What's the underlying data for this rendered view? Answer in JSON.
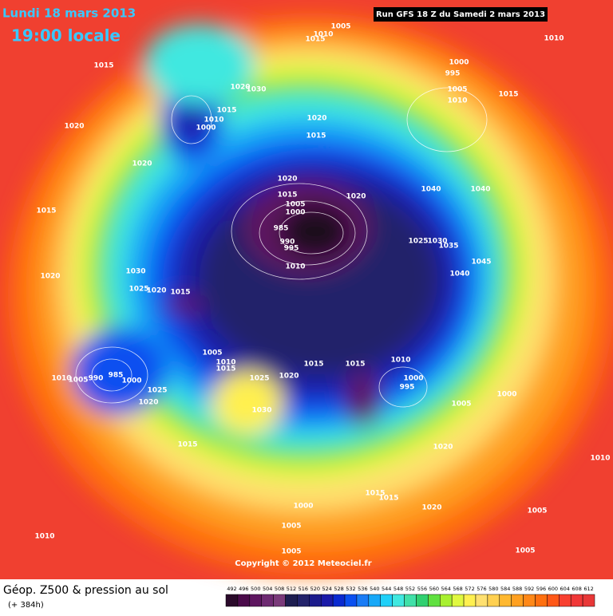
{
  "header": {
    "date_line": "Lundi 18 mars 2013",
    "time_line": "19:00 locale",
    "run_line": "Run GFS 18 Z du Samedi 2 mars 2013",
    "copyright": "Copyright © 2012 Meteociel.fr"
  },
  "footer": {
    "title": "Géop. Z500 & pression au sol",
    "forecast": "(+ 384h)"
  },
  "legend": {
    "values": [
      492,
      496,
      500,
      504,
      508,
      512,
      516,
      520,
      524,
      528,
      532,
      536,
      540,
      544,
      548,
      552,
      556,
      560,
      564,
      568,
      572,
      576,
      580,
      584,
      588,
      592,
      596,
      600,
      604,
      608,
      612
    ],
    "colors": [
      "#2a0a2a",
      "#4a0a4a",
      "#5e1660",
      "#6e2a72",
      "#7a3a7a",
      "#1e1e50",
      "#23236a",
      "#1c1c8c",
      "#1a1aa8",
      "#0a2ad0",
      "#0a50f0",
      "#1a7cf5",
      "#18a8f8",
      "#20d0f8",
      "#40e8e0",
      "#40e0a8",
      "#30d070",
      "#60e040",
      "#a8f030",
      "#e0f840",
      "#fff050",
      "#ffe070",
      "#ffd050",
      "#ffb830",
      "#ffa020",
      "#ff8818",
      "#ff7010",
      "#ff5818",
      "#f84030",
      "#f03838",
      "#e83838"
    ]
  },
  "isobar_labels": [
    1005,
    1010,
    1015,
    1010,
    1015,
    1000,
    995,
    1020,
    1030,
    1005,
    1010,
    1015,
    1015,
    1010,
    1000,
    1020,
    1020,
    1015,
    1020,
    1020,
    1015,
    1005,
    1000,
    1020,
    1040,
    1040,
    1015,
    985,
    990,
    995,
    1025,
    1030,
    1035,
    1045,
    1010,
    1040,
    1020,
    1030,
    1025,
    1020,
    1015,
    1005,
    1010,
    1015,
    1010,
    1000,
    995,
    1015,
    1015,
    1025,
    1020,
    1000,
    1005,
    1030,
    1010,
    1005,
    990,
    985,
    1000,
    1025,
    1020,
    1015,
    1020,
    1010,
    1015,
    1015,
    1000,
    1020,
    1005,
    1010,
    1005,
    1005,
    1005
  ]
}
